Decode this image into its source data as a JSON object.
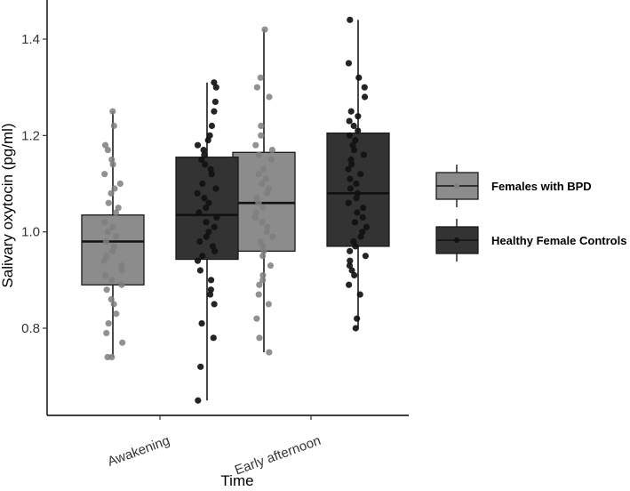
{
  "chart_data": {
    "type": "boxplot",
    "title": "",
    "xlabel": "Time",
    "ylabel": "Salivary oxytocin (pg/ml)",
    "categories": [
      "Awakening",
      "Early afternoon"
    ],
    "ylim": [
      0.62,
      1.47
    ],
    "yticks": [
      0.8,
      1.0,
      1.2,
      1.4
    ],
    "ytick_labels": [
      "0.8",
      "1.0",
      "1.2",
      "1.4"
    ],
    "grid": false,
    "legend_position": "right",
    "series": [
      {
        "name": "Females with BPD",
        "fill": "#8c8c8c",
        "point_color": "#7e7e7e",
        "boxes": [
          {
            "category": "Awakening",
            "min": 0.74,
            "q1": 0.89,
            "median": 0.98,
            "q3": 1.035,
            "max": 1.25,
            "points": [
              1.25,
              1.22,
              1.18,
              1.17,
              1.15,
              1.14,
              1.12,
              1.1,
              1.09,
              1.08,
              1.06,
              1.05,
              1.04,
              1.02,
              1.01,
              1.0,
              0.99,
              0.98,
              0.97,
              0.96,
              0.95,
              0.94,
              0.93,
              0.92,
              0.91,
              0.9,
              0.89,
              0.88,
              0.86,
              0.85,
              0.83,
              0.81,
              0.79,
              0.77,
              0.74,
              0.74
            ]
          },
          {
            "category": "Early afternoon",
            "min": 0.75,
            "q1": 0.96,
            "median": 1.06,
            "q3": 1.165,
            "max": 1.42,
            "points": [
              1.42,
              1.32,
              1.3,
              1.28,
              1.22,
              1.2,
              1.18,
              1.17,
              1.16,
              1.15,
              1.13,
              1.12,
              1.11,
              1.1,
              1.09,
              1.08,
              1.07,
              1.06,
              1.05,
              1.04,
              1.03,
              1.02,
              1.01,
              1.0,
              0.99,
              0.98,
              0.97,
              0.96,
              0.95,
              0.93,
              0.91,
              0.9,
              0.89,
              0.87,
              0.85,
              0.82,
              0.78,
              0.75
            ]
          }
        ]
      },
      {
        "name": "Healthy Female Controls",
        "fill": "#333333",
        "point_color": "#111111",
        "boxes": [
          {
            "category": "Awakening",
            "min": 0.65,
            "q1": 0.943,
            "median": 1.035,
            "q3": 1.155,
            "max": 1.31,
            "points": [
              1.31,
              1.3,
              1.27,
              1.25,
              1.22,
              1.2,
              1.19,
              1.18,
              1.17,
              1.16,
              1.15,
              1.14,
              1.13,
              1.12,
              1.1,
              1.09,
              1.08,
              1.07,
              1.06,
              1.05,
              1.04,
              1.03,
              1.02,
              1.01,
              1.0,
              0.99,
              0.98,
              0.97,
              0.96,
              0.95,
              0.94,
              0.92,
              0.9,
              0.88,
              0.87,
              0.85,
              0.81,
              0.78,
              0.72,
              0.65
            ]
          },
          {
            "category": "Early afternoon",
            "min": 0.8,
            "q1": 0.97,
            "median": 1.08,
            "q3": 1.205,
            "max": 1.44,
            "points": [
              1.44,
              1.35,
              1.32,
              1.3,
              1.28,
              1.25,
              1.24,
              1.23,
              1.22,
              1.21,
              1.2,
              1.19,
              1.18,
              1.17,
              1.16,
              1.15,
              1.14,
              1.13,
              1.12,
              1.11,
              1.1,
              1.09,
              1.08,
              1.07,
              1.06,
              1.05,
              1.04,
              1.03,
              1.02,
              1.01,
              1.0,
              0.99,
              0.98,
              0.97,
              0.96,
              0.95,
              0.94,
              0.93,
              0.92,
              0.91,
              0.89,
              0.87,
              0.82,
              0.8
            ]
          }
        ]
      }
    ]
  }
}
